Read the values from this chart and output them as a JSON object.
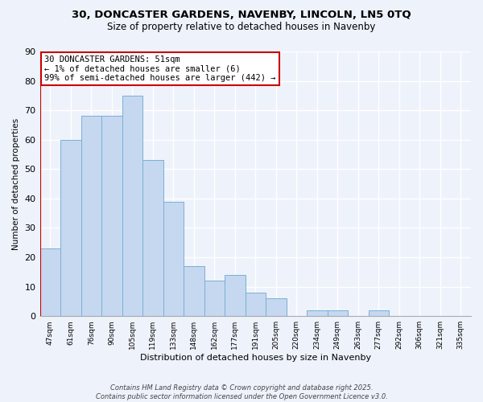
{
  "title_line1": "30, DONCASTER GARDENS, NAVENBY, LINCOLN, LN5 0TQ",
  "title_line2": "Size of property relative to detached houses in Navenby",
  "xlabel": "Distribution of detached houses by size in Navenby",
  "ylabel": "Number of detached properties",
  "categories": [
    "47sqm",
    "61sqm",
    "76sqm",
    "90sqm",
    "105sqm",
    "119sqm",
    "133sqm",
    "148sqm",
    "162sqm",
    "177sqm",
    "191sqm",
    "205sqm",
    "220sqm",
    "234sqm",
    "249sqm",
    "263sqm",
    "277sqm",
    "292sqm",
    "306sqm",
    "321sqm",
    "335sqm"
  ],
  "values": [
    23,
    60,
    68,
    68,
    75,
    53,
    39,
    17,
    12,
    14,
    8,
    6,
    0,
    2,
    2,
    0,
    2,
    0,
    0,
    0,
    0
  ],
  "bar_color": "#c5d8f0",
  "bar_edge_color": "#7bafd4",
  "annotation_box_text": "30 DONCASTER GARDENS: 51sqm\n← 1% of detached houses are smaller (6)\n99% of semi-detached houses are larger (442) →",
  "ylim": [
    0,
    90
  ],
  "yticks": [
    0,
    10,
    20,
    30,
    40,
    50,
    60,
    70,
    80,
    90
  ],
  "footer": "Contains HM Land Registry data © Crown copyright and database right 2025.\nContains public sector information licensed under the Open Government Licence v3.0.",
  "bg_color": "#eef2fb",
  "grid_color": "#ffffff",
  "vline_color": "#cc0000",
  "annotation_edge_color": "#cc0000",
  "annotation_font_size": 7.5,
  "title1_fontsize": 9.5,
  "title2_fontsize": 8.5,
  "xlabel_fontsize": 8.0,
  "ylabel_fontsize": 7.5
}
